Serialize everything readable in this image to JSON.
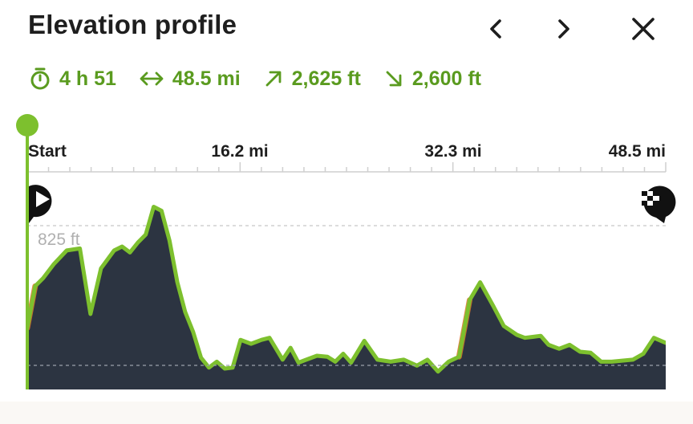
{
  "header": {
    "title": "Elevation profile",
    "prev_icon": "chevron-left-icon",
    "next_icon": "chevron-right-icon",
    "close_icon": "close-icon"
  },
  "stats": {
    "duration": "4 h 51",
    "distance": "48.5 mi",
    "ascent": "2,625 ft",
    "descent": "2,600 ft"
  },
  "colors": {
    "accent": "#5a9b1f",
    "line": "#7dc02e",
    "fill": "#2c3441",
    "grade": "#d9742c"
  },
  "chart_data": {
    "type": "area",
    "xlabel": "",
    "ylabel": "",
    "x_ticks": [
      "Start",
      "16.2 mi",
      "32.3 mi",
      "48.5 mi"
    ],
    "y_label": "825 ft",
    "xlim": [
      0,
      48.5
    ],
    "ylim_top": 825,
    "start_icon": "play-pin-icon",
    "finish_icon": "checkered-flag-pin-icon",
    "x": [
      0,
      0.6,
      1.2,
      2,
      3,
      4,
      4.8,
      5.6,
      6.6,
      7.2,
      7.8,
      8.4,
      9,
      9.6,
      10.2,
      10.8,
      11.4,
      12,
      12.6,
      13.2,
      13.8,
      14.4,
      15,
      15.6,
      16.2,
      17,
      17.8,
      18.4,
      19.4,
      20,
      20.6,
      21.2,
      22,
      22.8,
      23.4,
      24,
      24.6,
      25.6,
      26.6,
      27.6,
      28.6,
      29.6,
      30.4,
      31.2,
      32,
      32.8,
      33.6,
      34.4,
      35.4,
      36.2,
      37.2,
      37.8,
      38.4,
      39,
      39.6,
      40.4,
      41.2,
      42,
      42.8,
      43.6,
      44.4,
      45.2,
      46,
      46.8,
      47.6,
      48.5
    ],
    "y": [
      310,
      520,
      560,
      630,
      700,
      710,
      380,
      610,
      700,
      720,
      690,
      740,
      780,
      920,
      900,
      750,
      540,
      390,
      290,
      160,
      110,
      140,
      105,
      110,
      250,
      230,
      250,
      260,
      150,
      210,
      135,
      150,
      170,
      165,
      140,
      180,
      135,
      245,
      150,
      140,
      150,
      120,
      150,
      90,
      140,
      165,
      450,
      540,
      420,
      320,
      275,
      260,
      265,
      270,
      225,
      205,
      225,
      190,
      185,
      140,
      140,
      145,
      150,
      180,
      260,
      235
    ]
  }
}
